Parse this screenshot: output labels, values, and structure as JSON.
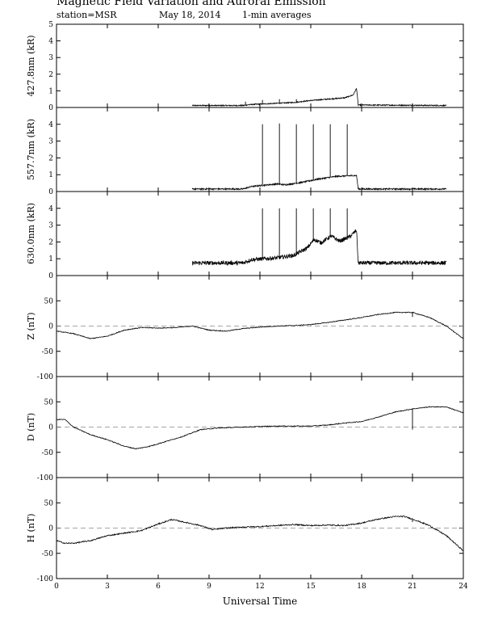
{
  "header": {
    "title": "Magnetic Field Variation and Auroral Emission",
    "station": "station=MSR",
    "date": "May 18, 2014",
    "averaging": "1-min averages"
  },
  "colors": {
    "trace": "#000000",
    "axis": "#000000",
    "zero_line": "#888888"
  },
  "chart_data": {
    "type": "line",
    "xlabel": "Universal Time",
    "xlim": [
      0,
      24
    ],
    "xticks": [
      0,
      3,
      6,
      9,
      12,
      15,
      18,
      21,
      24
    ],
    "panels": [
      {
        "id": "p4278",
        "ylabel": "427.8nm (kR)",
        "ylim": [
          0,
          5
        ],
        "yticks": [
          0,
          1,
          2,
          3,
          4,
          5
        ],
        "noise": 0.03,
        "gaps": [
          [
            0,
            8.0
          ],
          [
            23.0,
            24
          ]
        ],
        "spikes": [
          {
            "x": 11.15,
            "y": 0.35
          },
          {
            "x": 12.15,
            "y": 0.45
          },
          {
            "x": 13.15,
            "y": 0.5
          },
          {
            "x": 14.15,
            "y": 0.5
          }
        ],
        "points": [
          [
            8.0,
            0.12
          ],
          [
            11.0,
            0.12
          ],
          [
            11.5,
            0.18
          ],
          [
            13.0,
            0.25
          ],
          [
            14.0,
            0.3
          ],
          [
            15.0,
            0.42
          ],
          [
            16.0,
            0.5
          ],
          [
            17.0,
            0.58
          ],
          [
            17.5,
            0.75
          ],
          [
            17.7,
            1.15
          ],
          [
            17.8,
            0.15
          ],
          [
            23.0,
            0.12
          ]
        ]
      },
      {
        "id": "p5577",
        "ylabel": "557.7nm (kR)",
        "ylim": [
          0,
          5
        ],
        "yticks": [
          0,
          1,
          2,
          3,
          4
        ],
        "noise": 0.04,
        "gaps": [
          [
            0,
            8.0
          ],
          [
            23.0,
            24
          ]
        ],
        "spikes": [
          {
            "x": 12.15,
            "y": 4.0
          },
          {
            "x": 13.15,
            "y": 4.05
          },
          {
            "x": 14.15,
            "y": 4.0
          },
          {
            "x": 15.15,
            "y": 4.0
          },
          {
            "x": 16.15,
            "y": 4.0
          },
          {
            "x": 17.15,
            "y": 4.0
          }
        ],
        "points": [
          [
            8.0,
            0.15
          ],
          [
            11.0,
            0.15
          ],
          [
            11.5,
            0.3
          ],
          [
            13.0,
            0.45
          ],
          [
            13.5,
            0.4
          ],
          [
            14.5,
            0.55
          ],
          [
            15.5,
            0.75
          ],
          [
            16.5,
            0.9
          ],
          [
            17.5,
            0.95
          ],
          [
            17.7,
            0.95
          ],
          [
            17.8,
            0.15
          ],
          [
            23.0,
            0.15
          ]
        ]
      },
      {
        "id": "p6300",
        "ylabel": "630.0nm (kR)",
        "ylim": [
          0,
          5
        ],
        "yticks": [
          0,
          1,
          2,
          3,
          4
        ],
        "noise": 0.12,
        "gaps": [
          [
            0,
            8.0
          ],
          [
            23.0,
            24
          ]
        ],
        "spikes": [
          {
            "x": 12.15,
            "y": 4.0
          },
          {
            "x": 13.15,
            "y": 4.0
          },
          {
            "x": 14.15,
            "y": 4.0
          },
          {
            "x": 15.15,
            "y": 4.0
          },
          {
            "x": 16.15,
            "y": 4.0
          },
          {
            "x": 17.15,
            "y": 4.0
          }
        ],
        "points": [
          [
            8.0,
            0.75
          ],
          [
            11.0,
            0.75
          ],
          [
            11.5,
            0.95
          ],
          [
            13.0,
            1.05
          ],
          [
            14.0,
            1.2
          ],
          [
            14.8,
            1.65
          ],
          [
            15.2,
            2.15
          ],
          [
            15.6,
            1.95
          ],
          [
            16.2,
            2.35
          ],
          [
            16.7,
            2.05
          ],
          [
            17.3,
            2.3
          ],
          [
            17.7,
            2.7
          ],
          [
            17.8,
            0.75
          ],
          [
            23.0,
            0.75
          ]
        ]
      },
      {
        "id": "pZ",
        "ylabel": "Z (nT)",
        "ylim": [
          -100,
          100
        ],
        "yticks": [
          -100,
          -50,
          0,
          50
        ],
        "zero_line": true,
        "noise": 0.8,
        "gaps": [],
        "spikes": [
          {
            "x": 21.0,
            "y": 18
          }
        ],
        "points": [
          [
            0,
            -10
          ],
          [
            1,
            -15
          ],
          [
            2,
            -25
          ],
          [
            3,
            -20
          ],
          [
            4,
            -8
          ],
          [
            5,
            -3
          ],
          [
            6,
            -4
          ],
          [
            7,
            -3
          ],
          [
            8,
            0
          ],
          [
            9,
            -8
          ],
          [
            10,
            -10
          ],
          [
            11,
            -5
          ],
          [
            12,
            -2
          ],
          [
            13,
            0
          ],
          [
            14,
            1
          ],
          [
            15,
            3
          ],
          [
            16,
            7
          ],
          [
            17,
            12
          ],
          [
            18,
            17
          ],
          [
            19,
            23
          ],
          [
            20,
            27
          ],
          [
            21,
            27
          ],
          [
            22,
            17
          ],
          [
            23,
            0
          ],
          [
            24,
            -25
          ]
        ]
      },
      {
        "id": "pD",
        "ylabel": "D (nT)",
        "ylim": [
          -100,
          100
        ],
        "yticks": [
          -100,
          -50,
          0,
          50
        ],
        "zero_line": true,
        "noise": 0.8,
        "gaps": [],
        "spikes": [
          {
            "x": 21.0,
            "y": -5
          }
        ],
        "points": [
          [
            0,
            15
          ],
          [
            0.5,
            15
          ],
          [
            1,
            0
          ],
          [
            2,
            -15
          ],
          [
            3,
            -25
          ],
          [
            4,
            -38
          ],
          [
            4.7,
            -43
          ],
          [
            5.5,
            -38
          ],
          [
            6.5,
            -28
          ],
          [
            7.5,
            -18
          ],
          [
            8.5,
            -5
          ],
          [
            9.5,
            -2
          ],
          [
            11,
            0
          ],
          [
            13,
            2
          ],
          [
            15,
            2
          ],
          [
            16,
            4
          ],
          [
            17,
            8
          ],
          [
            18,
            11
          ],
          [
            19,
            20
          ],
          [
            20,
            30
          ],
          [
            21,
            36
          ],
          [
            22,
            40
          ],
          [
            23,
            40
          ],
          [
            24,
            28
          ]
        ]
      },
      {
        "id": "pH",
        "ylabel": "H (nT)",
        "ylim": [
          -100,
          100
        ],
        "yticks": [
          -100,
          -50,
          0,
          50
        ],
        "zero_line": true,
        "noise": 1.2,
        "gaps": [],
        "spikes": [
          {
            "x": 21.0,
            "y": 12
          }
        ],
        "points": [
          [
            0,
            -25
          ],
          [
            0.5,
            -30
          ],
          [
            1,
            -30
          ],
          [
            2,
            -25
          ],
          [
            3,
            -15
          ],
          [
            4,
            -10
          ],
          [
            5,
            -5
          ],
          [
            6,
            8
          ],
          [
            6.8,
            17
          ],
          [
            7.5,
            12
          ],
          [
            8.5,
            5
          ],
          [
            9.2,
            -3
          ],
          [
            10,
            0
          ],
          [
            11,
            2
          ],
          [
            12,
            3
          ],
          [
            13,
            5
          ],
          [
            14,
            7
          ],
          [
            15,
            5
          ],
          [
            16,
            6
          ],
          [
            17,
            5
          ],
          [
            18,
            10
          ],
          [
            19,
            18
          ],
          [
            20,
            23
          ],
          [
            20.5,
            23
          ],
          [
            21,
            18
          ],
          [
            22,
            5
          ],
          [
            23,
            -15
          ],
          [
            24,
            -45
          ]
        ]
      }
    ]
  }
}
